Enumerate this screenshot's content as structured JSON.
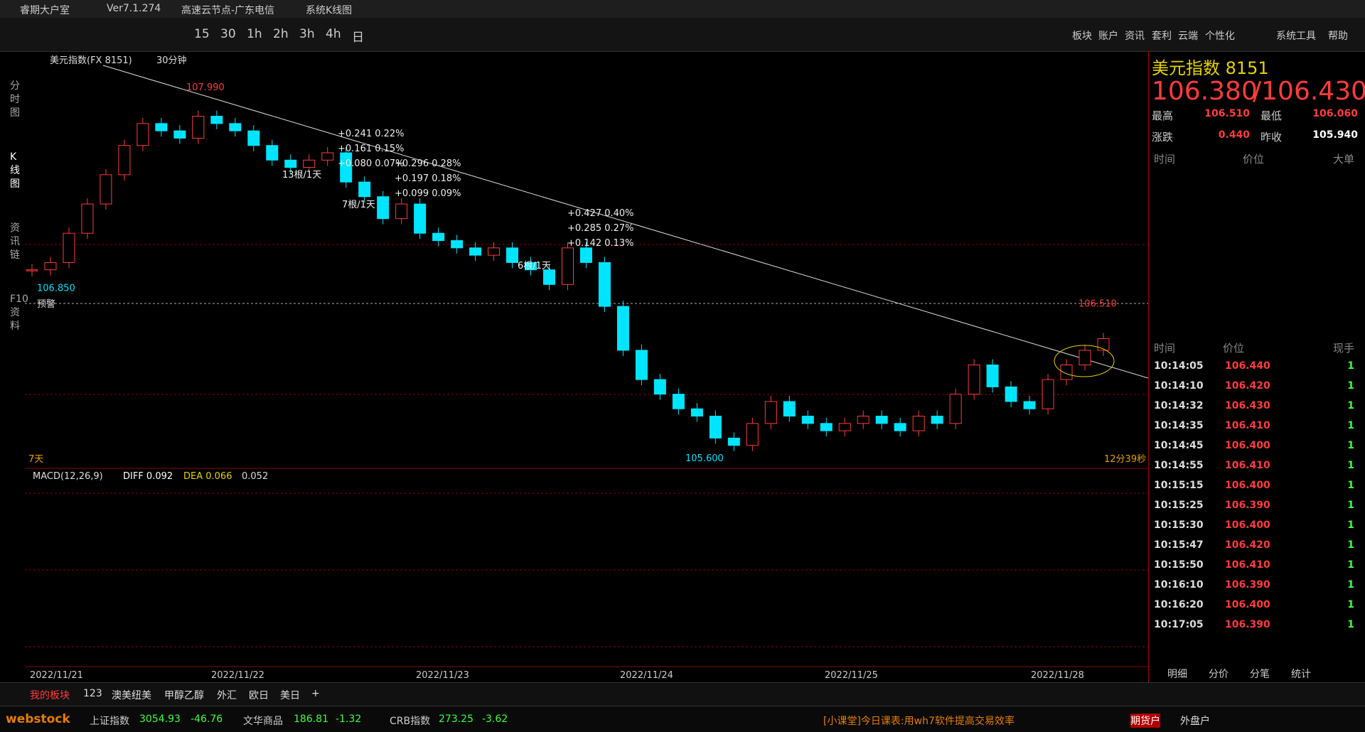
{
  "window": {
    "items": [
      "睿期大户室",
      "Ver7.1.274",
      "高速云节点-广东电信",
      "系统K线图"
    ]
  },
  "toolbar": {
    "periods": [
      "15",
      "30",
      "1h",
      "2h",
      "3h",
      "4h",
      "日"
    ],
    "menu": [
      "板块",
      "账户",
      "资讯",
      "套利",
      "云端",
      "个性化",
      "系统工具",
      "帮助"
    ]
  },
  "side_tabs": [
    "分时图",
    "K线图",
    "资讯链",
    "F10资料"
  ],
  "chart": {
    "symbol": "美元指数(FX 8151)",
    "period": "30分钟",
    "high": {
      "value": 107.99,
      "label": "107.990"
    },
    "low": {
      "value": 105.6,
      "label": "105.600"
    },
    "start": {
      "value": 106.85,
      "label": "106.850"
    },
    "recent_high": {
      "value": 106.51,
      "label": "106.510"
    },
    "alert": "预警",
    "days": "7天",
    "countdown": "12分39秒",
    "closes": [
      106.85,
      106.9,
      107.1,
      107.3,
      107.5,
      107.7,
      107.85,
      107.8,
      107.75,
      107.9,
      107.85,
      107.8,
      107.7,
      107.6,
      107.55,
      107.6,
      107.65,
      107.45,
      107.35,
      107.2,
      107.3,
      107.1,
      107.05,
      107.0,
      106.95,
      107.0,
      106.9,
      106.85,
      106.75,
      107.0,
      106.9,
      106.6,
      106.3,
      106.1,
      106.0,
      105.9,
      105.85,
      105.7,
      105.65,
      105.8,
      105.95,
      105.85,
      105.8,
      105.75,
      105.8,
      105.85,
      105.8,
      105.75,
      105.85,
      105.8,
      106.0,
      106.2,
      106.05,
      105.95,
      105.9,
      106.1,
      106.2,
      106.3,
      106.38
    ],
    "annotations": [
      {
        "lines": [
          "+0.241  0.22%",
          "+0.161  0.15%",
          "+0.080  0.07%"
        ],
        "count": "13根/1天"
      },
      {
        "lines": [
          "+0.296  0.28%",
          "+0.197  0.18%",
          "+0.099  0.09%"
        ],
        "count": "7根/1天"
      },
      {
        "lines": [
          "+0.427  0.40%",
          "+0.285  0.27%",
          "+0.142  0.13%"
        ],
        "count": "6根/1天"
      }
    ],
    "dates": [
      "2022/11/21",
      "2022/11/22",
      "2022/11/23",
      "2022/11/24",
      "2022/11/25",
      "2022/11/28"
    ]
  },
  "macd": {
    "label": "MACD(12,26,9)",
    "diff": "DIFF 0.092",
    "dea": "DEA 0.066",
    "value": "0.052"
  },
  "quote": {
    "name": "美元指数  8151",
    "bid": "106.380",
    "ask": "/106.430",
    "rows": [
      [
        "最高",
        "106.510",
        "最低",
        "106.060"
      ],
      [
        "涨跌",
        "0.440",
        "昨收",
        "105.940"
      ]
    ],
    "header1": [
      "时间",
      "价位",
      "大单"
    ],
    "header2": [
      "时间",
      "价位",
      "现手"
    ],
    "ticks": [
      [
        "10:14:05",
        "106.440",
        "1"
      ],
      [
        "10:14:10",
        "106.420",
        "1"
      ],
      [
        "10:14:32",
        "106.430",
        "1"
      ],
      [
        "10:14:35",
        "106.410",
        "1"
      ],
      [
        "10:14:45",
        "106.400",
        "1"
      ],
      [
        "10:14:55",
        "106.410",
        "1"
      ],
      [
        "10:15:15",
        "106.400",
        "1"
      ],
      [
        "10:15:25",
        "106.390",
        "1"
      ],
      [
        "10:15:30",
        "106.400",
        "1"
      ],
      [
        "10:15:47",
        "106.420",
        "1"
      ],
      [
        "10:15:50",
        "106.410",
        "1"
      ],
      [
        "10:16:10",
        "106.390",
        "1"
      ],
      [
        "10:16:20",
        "106.400",
        "1"
      ],
      [
        "10:17:05",
        "106.390",
        "1"
      ]
    ],
    "tabs": [
      "明细",
      "分价",
      "分笔",
      "统计"
    ]
  },
  "bottom_tabs": [
    "我的板块",
    "123",
    "澳美纽美",
    "甲醇乙醇",
    "外汇",
    "欧日",
    "美日",
    "+"
  ],
  "ticker": {
    "brand": "webstock",
    "indices": [
      [
        "上证指数",
        "3054.93",
        "-46.76"
      ],
      [
        "文华商品",
        "186.81",
        "-1.32"
      ],
      [
        "CRB指数",
        "273.25",
        "-3.62"
      ]
    ],
    "news": "[小课堂]今日课表:用wh7软件提高交易效率",
    "buttons": [
      "期货户",
      "外盘户"
    ]
  }
}
